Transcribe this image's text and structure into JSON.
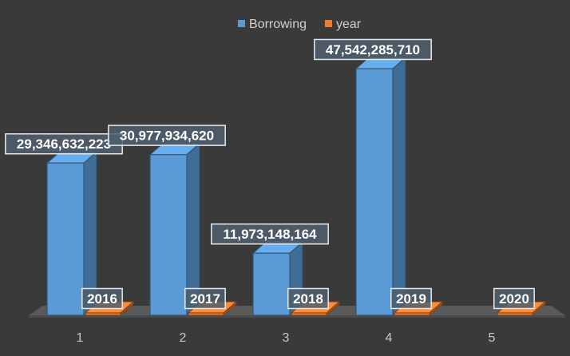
{
  "chart_data": {
    "type": "bar",
    "categories": [
      "1",
      "2",
      "3",
      "4",
      "5"
    ],
    "series": [
      {
        "name": "Borrowing",
        "values": [
          29346632223,
          30977934620,
          11973148164,
          47542285710,
          null
        ],
        "labels": [
          "29,346,632,223",
          "30,977,934,620",
          "11,973,148,164",
          "47,542,285,710",
          ""
        ]
      },
      {
        "name": "year",
        "values": [
          2016,
          2017,
          2018,
          2019,
          2020
        ],
        "labels": [
          "2016",
          "2017",
          "2018",
          "2019",
          "2020"
        ]
      }
    ],
    "legend_position": "top-center",
    "grid": false,
    "colors": {
      "Borrowing": "#5b9bd5",
      "year": "#ed7d31",
      "background": "#3a3a3a"
    }
  }
}
